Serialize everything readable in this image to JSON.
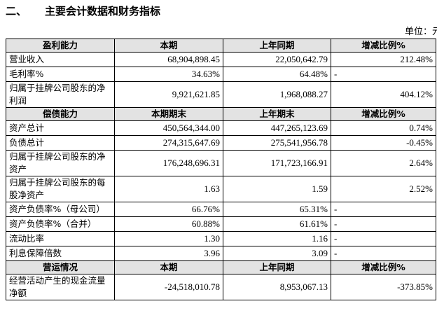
{
  "header": {
    "number": "二、",
    "title": "主要会计数据和财务指标",
    "unit": "单位：元"
  },
  "sections": [
    {
      "header": [
        "盈利能力",
        "本期",
        "上年同期",
        "增减比例%"
      ],
      "rows": [
        [
          "营业收入",
          "68,904,898.45",
          "22,050,642.79",
          "212.48%"
        ],
        [
          "毛利率%",
          "34.63%",
          "64.48%",
          "-"
        ],
        [
          "归属于挂牌公司股东的净利润",
          "9,921,621.85",
          "1,968,088.27",
          "404.12%"
        ]
      ]
    },
    {
      "header": [
        "偿债能力",
        "本期期末",
        "上年期末",
        "增减比例%"
      ],
      "rows": [
        [
          "资产总计",
          "450,564,344.00",
          "447,265,123.69",
          "0.74%"
        ],
        [
          "负债总计",
          "274,315,647.69",
          "275,541,956.78",
          "-0.45%"
        ],
        [
          "归属于挂牌公司股东的净资产",
          "176,248,696.31",
          "171,723,166.91",
          "2.64%"
        ],
        [
          "归属于挂牌公司股东的每股净资产",
          "1.63",
          "1.59",
          "2.52%"
        ],
        [
          "资产负债率%（母公司）",
          "66.76%",
          "65.31%",
          "-"
        ],
        [
          "资产负债率%（合并）",
          "60.88%",
          "61.61%",
          "-"
        ],
        [
          "流动比率",
          "1.30",
          "1.16",
          "-"
        ],
        [
          "利息保障倍数",
          "3.96",
          "3.09",
          "-"
        ]
      ]
    },
    {
      "header": [
        "营运情况",
        "本期",
        "上年同期",
        "增减比例%"
      ],
      "rows": [
        [
          "经营活动产生的现金流量净额",
          "-24,518,010.78",
          "8,953,067.13",
          "-373.85%"
        ]
      ]
    }
  ]
}
